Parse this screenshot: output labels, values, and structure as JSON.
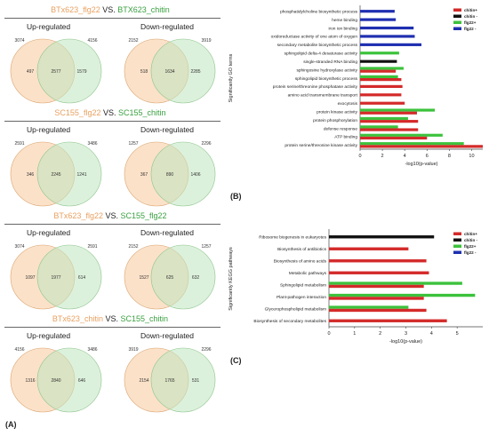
{
  "panelA": {
    "label": "(A)",
    "titles": [
      {
        "left": "BTx623_flg22",
        "vs": "VS.",
        "right": "BTX623_chitin"
      },
      {
        "left": "SC155_flg22",
        "vs": "VS.",
        "right": "SC155_chitin"
      },
      {
        "left": "BTx623_flg22",
        "vs": "VS.",
        "right": "SC155_flg22"
      },
      {
        "left": "BTx623_chitin",
        "vs": "VS.",
        "right": "SC155_chitin"
      }
    ],
    "up_label": "Up-regulated",
    "down_label": "Down-regulated",
    "venns": [
      {
        "up": {
          "tl": "3074",
          "tr": "4156",
          "l": "497",
          "m": "2577",
          "r": "1579"
        },
        "down": {
          "tl": "2152",
          "tr": "3919",
          "l": "518",
          "m": "1634",
          "r": "2285"
        }
      },
      {
        "up": {
          "tl": "2591",
          "tr": "3486",
          "l": "346",
          "m": "2245",
          "r": "1241"
        },
        "down": {
          "tl": "1257",
          "tr": "2296",
          "l": "367",
          "m": "890",
          "r": "1406"
        }
      },
      {
        "up": {
          "tl": "3074",
          "tr": "2591",
          "l": "1097",
          "m": "1977",
          "r": "614"
        },
        "down": {
          "tl": "2152",
          "tr": "1257",
          "l": "1527",
          "m": "625",
          "r": "632"
        }
      },
      {
        "up": {
          "tl": "4156",
          "tr": "3486",
          "l": "1316",
          "m": "2840",
          "r": "646"
        },
        "down": {
          "tl": "3919",
          "tr": "2296",
          "l": "2154",
          "m": "1765",
          "r": "531"
        }
      }
    ]
  },
  "chart_data": [
    {
      "type": "bar",
      "label": "(B)",
      "orientation": "horizontal",
      "ylabel": "Significantly GO terms",
      "xlabel": "-log10(p-value)",
      "xlim": [
        0,
        11
      ],
      "xticks": [
        "0",
        "2",
        "4",
        "6",
        "8",
        "10"
      ],
      "legend": [
        "chitin+",
        "chitin -",
        "flg22+",
        "flg22 -"
      ],
      "legend_colors": [
        "#d42a2a",
        "#111111",
        "#3cc23c",
        "#1f2fb0"
      ],
      "categories": [
        "phosphatidylcholine biosynthetic process",
        "heme binding",
        "iron ion binding",
        "oxidoreductase activity of one atom of oxygen",
        "secondary metabolite biosynthetic process",
        "sphingolipid delta-4 desaturase activity",
        "single-stranded RNA binding",
        "sphingosine hydroxylase activity",
        "sphingolipid biosynthetic process",
        "protein serine/threonine phosphatase activity",
        "amino acid transmembrane transport",
        "exocytosis",
        "protein kinase activity",
        "protein phosphorylation",
        "defense response",
        "ATP binding",
        "protein serine/threonine kinase activity"
      ],
      "bars": [
        [
          {
            "s": 3,
            "v": 3.1
          }
        ],
        [
          {
            "s": 3,
            "v": 3.2
          }
        ],
        [
          {
            "s": 3,
            "v": 4.8
          }
        ],
        [
          {
            "s": 3,
            "v": 4.9
          }
        ],
        [
          {
            "s": 3,
            "v": 5.5
          }
        ],
        [
          {
            "s": 2,
            "v": 3.5
          }
        ],
        [
          {
            "s": 1,
            "v": 3.3
          }
        ],
        [
          {
            "s": 2,
            "v": 3.9
          },
          {
            "s": 0,
            "v": 3.2
          }
        ],
        [
          {
            "s": 2,
            "v": 3.4
          },
          {
            "s": 0,
            "v": 3.7
          }
        ],
        [
          {
            "s": 0,
            "v": 3.8
          }
        ],
        [
          {
            "s": 0,
            "v": 3.7
          }
        ],
        [
          {
            "s": 0,
            "v": 4.0
          }
        ],
        [
          {
            "s": 2,
            "v": 6.7
          },
          {
            "s": 0,
            "v": 5.1
          }
        ],
        [
          {
            "s": 2,
            "v": 4.3
          },
          {
            "s": 0,
            "v": 5.2
          }
        ],
        [
          {
            "s": 2,
            "v": 3.4
          },
          {
            "s": 0,
            "v": 5.2
          }
        ],
        [
          {
            "s": 2,
            "v": 7.4
          },
          {
            "s": 0,
            "v": 6.0
          }
        ],
        [
          {
            "s": 2,
            "v": 9.3
          },
          {
            "s": 0,
            "v": 11.0
          }
        ]
      ]
    },
    {
      "type": "bar",
      "label": "(C)",
      "orientation": "horizontal",
      "ylabel": "Significantly KEGG pathways",
      "xlabel": "-log10(p-value)",
      "xlim": [
        0,
        6
      ],
      "xticks": [
        "0",
        "1",
        "2",
        "3",
        "4",
        "5"
      ],
      "legend": [
        "chitin+",
        "chitin -",
        "flg22+",
        "flg22 -"
      ],
      "legend_colors": [
        "#d42a2a",
        "#111111",
        "#3cc23c",
        "#1f2fb0"
      ],
      "categories": [
        "Ribosome biogenesis in eukaryotes",
        "Biosynthesis of antibiotics",
        "Biosynthesis of amino acids",
        "Metabolic pathways",
        "Sphingolipid metabolism",
        "Plant-pathogen interaction",
        "Glycerophospholipid metabolism",
        "Biosynthesis of secondary metabolites"
      ],
      "bars": [
        [
          {
            "s": 1,
            "v": 4.1
          }
        ],
        [
          {
            "s": 0,
            "v": 3.1
          }
        ],
        [
          {
            "s": 0,
            "v": 3.8
          }
        ],
        [
          {
            "s": 0,
            "v": 3.9
          }
        ],
        [
          {
            "s": 2,
            "v": 5.2
          },
          {
            "s": 0,
            "v": 3.7
          }
        ],
        [
          {
            "s": 2,
            "v": 5.7
          },
          {
            "s": 0,
            "v": 3.7
          }
        ],
        [
          {
            "s": 2,
            "v": 3.1
          },
          {
            "s": 0,
            "v": 3.8
          }
        ],
        [
          {
            "s": 0,
            "v": 4.6
          }
        ]
      ]
    }
  ]
}
